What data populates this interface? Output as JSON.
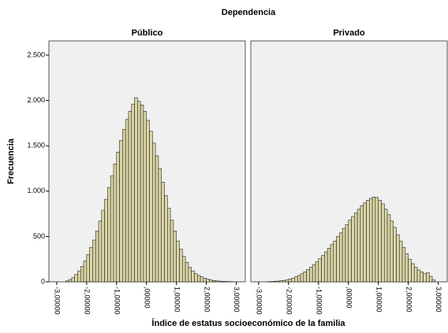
{
  "chart_data": {
    "type": "histogram",
    "title": "Dependencia",
    "x_label": "Índice de estatus socioeconómico de la familia",
    "y_label": "Frecuencia",
    "color": "#dcd7a6",
    "xlim": [
      -3.26,
      3.3
    ],
    "ylim": [
      0,
      2656
    ],
    "yticks": [
      0,
      {
        "value": 500,
        "label": "500"
      },
      {
        "value": 1000,
        "label": "1.000"
      },
      {
        "value": 1500,
        "label": "1.500"
      },
      {
        "value": 2000,
        "label": "2.000"
      },
      {
        "value": 2500,
        "label": "2.500"
      }
    ],
    "xticks": [
      {
        "value": -3,
        "label": "-3,00000"
      },
      {
        "value": -2,
        "label": "-2,00000"
      },
      {
        "value": -1,
        "label": "-1,00000"
      },
      {
        "value": 0,
        "label": ",00000"
      },
      {
        "value": 1,
        "label": "1,00000"
      },
      {
        "value": 2,
        "label": "2,00000"
      },
      {
        "value": 3,
        "label": "3,00000"
      }
    ],
    "bins": [
      -2.8,
      -2.7,
      -2.6,
      -2.5,
      -2.4,
      -2.3,
      -2.2,
      -2.1,
      -2.0,
      -1.9,
      -1.8,
      -1.7,
      -1.6,
      -1.5,
      -1.4,
      -1.3,
      -1.2,
      -1.1,
      -1.0,
      -0.9,
      -0.8,
      -0.7,
      -0.6,
      -0.5,
      -0.4,
      -0.3,
      -0.2,
      -0.1,
      0.0,
      0.1,
      0.2,
      0.3,
      0.4,
      0.5,
      0.6,
      0.7,
      0.8,
      0.9,
      1.0,
      1.1,
      1.2,
      1.3,
      1.4,
      1.5,
      1.6,
      1.7,
      1.8,
      1.9,
      2.0,
      2.1,
      2.2,
      2.3,
      2.4,
      2.5,
      2.6,
      2.7,
      2.8,
      2.9,
      3.0
    ],
    "panels": [
      {
        "title": "Público",
        "values": [
          0,
          10,
          25,
          45,
          80,
          120,
          170,
          230,
          300,
          380,
          460,
          560,
          670,
          790,
          910,
          1040,
          1170,
          1300,
          1430,
          1560,
          1680,
          1790,
          1880,
          1960,
          2030,
          1990,
          1950,
          1880,
          1780,
          1660,
          1530,
          1390,
          1250,
          1100,
          950,
          810,
          680,
          560,
          450,
          360,
          280,
          215,
          160,
          120,
          90,
          70,
          55,
          40,
          30,
          22,
          15,
          10,
          8,
          6,
          4,
          3,
          2,
          0
        ]
      },
      {
        "title": "Privado",
        "values": [
          0,
          2,
          4,
          6,
          8,
          12,
          16,
          22,
          30,
          40,
          55,
          70,
          90,
          110,
          135,
          160,
          190,
          220,
          255,
          290,
          330,
          370,
          410,
          450,
          500,
          540,
          590,
          630,
          680,
          720,
          760,
          800,
          840,
          870,
          900,
          920,
          935,
          930,
          900,
          860,
          800,
          740,
          670,
          600,
          520,
          450,
          380,
          310,
          250,
          200,
          160,
          130,
          110,
          90,
          100,
          60,
          20,
          0
        ]
      }
    ]
  }
}
